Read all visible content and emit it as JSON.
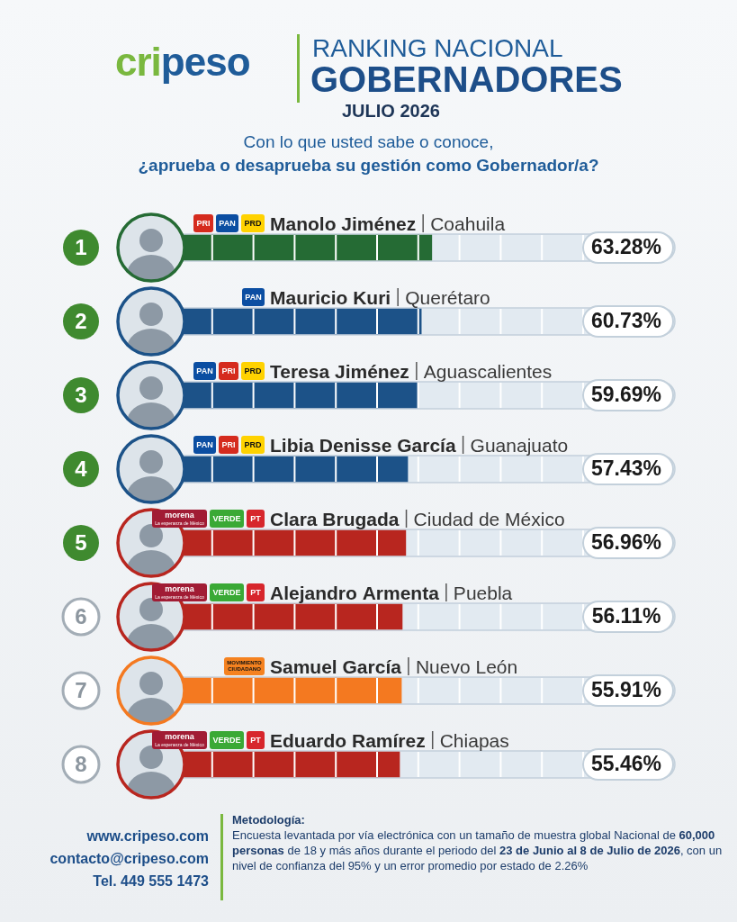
{
  "header": {
    "brand": "cripeso",
    "title_line1": "RANKING NACIONAL",
    "title_line2": "GOBERNADORES",
    "date": "JULIO 2026",
    "question_line1": "Con lo que usted sabe o conoce,",
    "question_line2": "¿aprueba o desaprueba su gestión como Gobernador/a?"
  },
  "chart_data": {
    "type": "bar",
    "orientation": "horizontal",
    "categories": [
      "Manolo Jiménez",
      "Mauricio Kuri",
      "Teresa Jiménez",
      "Libia Denisse García",
      "Clara Brugada",
      "Alejandro Armenta",
      "Samuel García",
      "Eduardo Ramírez"
    ],
    "states": [
      "Coahuila",
      "Querétaro",
      "Aguascalientes",
      "Guanajuato",
      "Ciudad de México",
      "Puebla",
      "Nuevo León",
      "Chiapas"
    ],
    "parties": [
      [
        "PRI",
        "PAN",
        "PRD"
      ],
      [
        "PAN"
      ],
      [
        "PAN",
        "PRI",
        "PRD"
      ],
      [
        "PAN",
        "PRI",
        "PRD"
      ],
      [
        "morena",
        "VERDE",
        "PT"
      ],
      [
        "morena",
        "VERDE",
        "PT"
      ],
      [
        "MOVIMIENTO CIUDADANO"
      ],
      [
        "morena",
        "VERDE",
        "PT"
      ]
    ],
    "ranks": [
      1,
      2,
      3,
      4,
      5,
      6,
      7,
      8
    ],
    "values": [
      63.28,
      60.73,
      59.69,
      57.43,
      56.96,
      56.11,
      55.91,
      55.46
    ],
    "value_labels": [
      "63.28%",
      "60.73%",
      "59.69%",
      "57.43%",
      "56.96%",
      "56.11%",
      "55.91%",
      "55.46%"
    ],
    "colors": [
      "#256b34",
      "#1c5288",
      "#1c5288",
      "#1c5288",
      "#b8261f",
      "#b8261f",
      "#f47920",
      "#b8261f"
    ],
    "xlim": [
      0,
      100
    ],
    "xticks": [
      0,
      10,
      20,
      30,
      40,
      50,
      60,
      70,
      80,
      90,
      100
    ],
    "grid": true,
    "tick_labels": false,
    "data_labels": true
  },
  "party_logos": {
    "PRI": {
      "color": "#d52b1e"
    },
    "PAN": {
      "color": "#0b4ea2"
    },
    "PRD": {
      "color": "#ffd200"
    },
    "morena": {
      "color": "#a11c34",
      "tagline": "La esperanza de México"
    },
    "VERDE": {
      "color": "#3aa935"
    },
    "PT": {
      "color": "#d7262c"
    },
    "MOVIMIENTO CIUDADANO": {
      "color": "#f58220"
    }
  },
  "footer": {
    "website": "www.cripeso.com",
    "email": "contacto@cripeso.com",
    "phone": "Tel. 449 555 1473",
    "methodology_title": "Metodología:",
    "methodology": [
      {
        "text": "Encuesta levantada por vía electrónica con un tamaño de muestra global Nacional de ",
        "bold": false
      },
      {
        "text": "60,000 personas",
        "bold": true
      },
      {
        "text": " de 18 y más años durante el periodo del ",
        "bold": false
      },
      {
        "text": "23 de Junio al 8 de Julio de 2026",
        "bold": true
      },
      {
        "text": ", con un nivel de confianza del 95% y un error promedio por estado de 2.26%",
        "bold": false
      }
    ]
  }
}
